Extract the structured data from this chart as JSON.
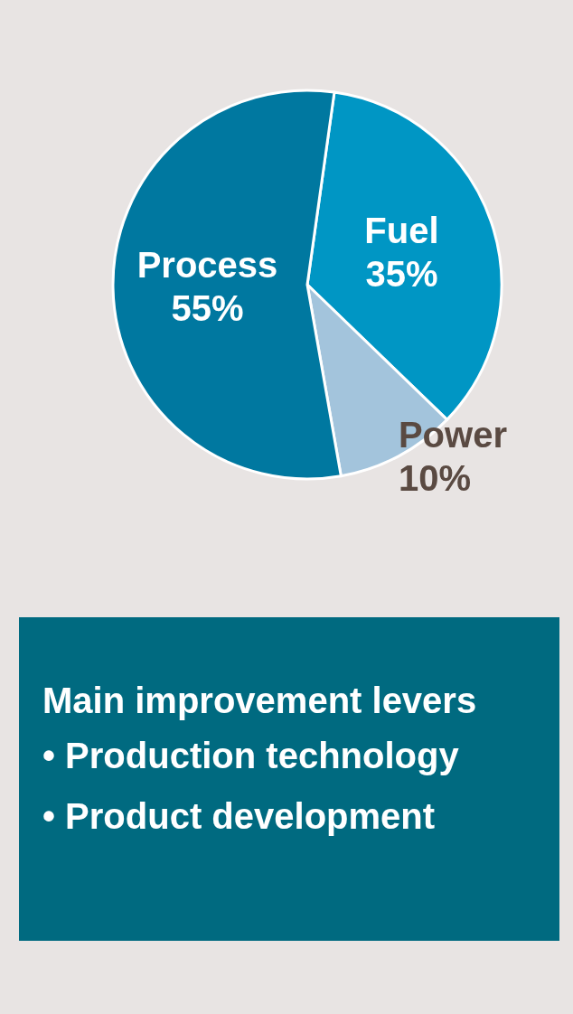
{
  "chart_data": {
    "type": "pie",
    "categories": [
      "Fuel",
      "Power",
      "Process"
    ],
    "values": [
      35,
      10,
      55
    ],
    "value_labels": [
      "35%",
      "10%",
      "55%"
    ],
    "colors": [
      "#0096c4",
      "#a3c4dc",
      "#0078a0"
    ],
    "legend": false,
    "annotations": [
      "Main improvement levers",
      "• Production technology",
      "• Product development"
    ]
  }
}
